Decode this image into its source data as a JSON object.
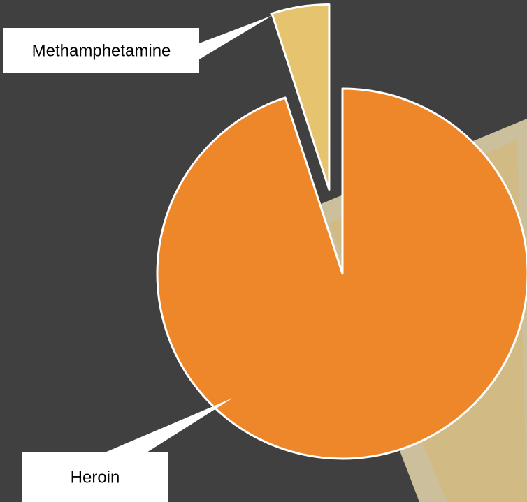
{
  "chart_data": {
    "type": "pie",
    "categories": [
      "Heroin",
      "Methamphetamine"
    ],
    "values": [
      95,
      5
    ],
    "colors": [
      "#ee862a",
      "#e6c46f"
    ]
  }
}
